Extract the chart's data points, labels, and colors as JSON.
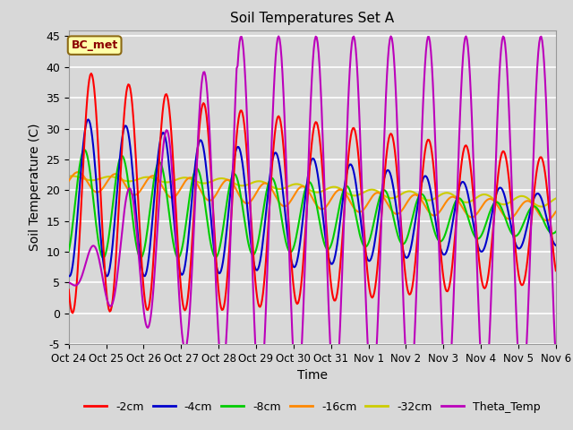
{
  "title": "Soil Temperatures Set A",
  "xlabel": "Time",
  "ylabel": "Soil Temperature (C)",
  "ylim": [
    -5,
    46
  ],
  "yticks": [
    -5,
    0,
    5,
    10,
    15,
    20,
    25,
    30,
    35,
    40,
    45
  ],
  "bg_color": "#d8d8d8",
  "annotation_text": "BC_met",
  "annotation_bg": "#ffffaa",
  "annotation_border": "#8b6914",
  "series_colors": {
    "-2cm": "#ff0000",
    "-4cm": "#0000cc",
    "-8cm": "#00cc00",
    "-16cm": "#ff8800",
    "-32cm": "#cccc00",
    "Theta_Temp": "#bb00bb"
  },
  "x_tick_labels": [
    "Oct 24",
    "Oct 25",
    "Oct 26",
    "Oct 27",
    "Oct 28",
    "Oct 29",
    "Oct 30",
    "Oct 31",
    "Nov 1",
    "Nov 2",
    "Nov 3",
    "Nov 4",
    "Nov 5",
    "Nov 6"
  ],
  "n_points": 500
}
